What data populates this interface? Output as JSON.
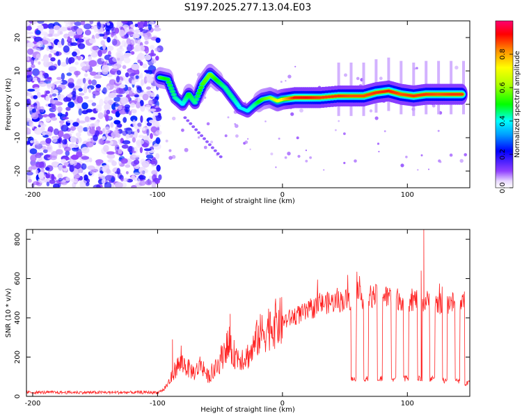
{
  "chart_data": [
    {
      "type": "heatmap",
      "title": "S197.2025.277.13.04.E03",
      "xlabel": "Height of straight line (km)",
      "ylabel": "Frequency (Hz)",
      "xlim": [
        -205,
        150
      ],
      "ylim": [
        -25,
        25
      ],
      "xticks": [
        -200,
        -100,
        0,
        100
      ],
      "yticks": [
        20,
        10,
        0,
        -10,
        -20
      ],
      "colorbar": {
        "label": "Normalized spectral amplitude",
        "range": [
          0,
          1
        ],
        "ticks": [
          "0.0",
          "0.2",
          "0.4",
          "0.6",
          "0.8"
        ],
        "tick_values": [
          0.0,
          0.2,
          0.4,
          0.6,
          0.8
        ]
      },
      "ridge": {
        "x": [
          -98,
          -92,
          -86,
          -80,
          -75,
          -70,
          -64,
          -58,
          -52,
          -46,
          -40,
          -34,
          -28,
          -22,
          -16,
          -10,
          -4,
          0,
          10,
          20,
          30,
          45,
          55,
          65,
          75,
          85,
          95,
          105,
          115,
          125,
          135,
          145
        ],
        "freq": [
          8,
          7.5,
          2,
          0,
          3,
          0.5,
          6,
          9,
          7,
          5,
          2,
          -1,
          -2,
          0,
          1.5,
          2,
          1,
          1.5,
          2,
          2,
          2,
          2.5,
          2.5,
          2.5,
          3.5,
          4,
          3,
          2.5,
          3,
          3,
          3,
          3
        ],
        "amplitude": [
          0.55,
          0.5,
          0.45,
          0.4,
          0.5,
          0.45,
          0.55,
          0.6,
          0.5,
          0.45,
          0.45,
          0.4,
          0.4,
          0.45,
          0.55,
          0.6,
          0.7,
          0.75,
          0.92,
          0.93,
          0.9,
          0.9,
          0.88,
          0.88,
          0.9,
          0.92,
          0.88,
          0.9,
          0.9,
          0.88,
          0.9,
          0.9
        ]
      }
    },
    {
      "type": "line",
      "xlabel": "Height of straight line (km)",
      "ylabel": "SNR (10 * v/v)",
      "xlim": [
        -205,
        150
      ],
      "ylim": [
        0,
        850
      ],
      "xticks": [
        -200,
        -100,
        0,
        100
      ],
      "yticks": [
        0,
        200,
        400,
        600,
        800
      ],
      "series": [
        {
          "name": "SNR",
          "color": "#ff2020",
          "x": [
            -205,
            -100,
            -95,
            -90,
            -85,
            -80,
            -75,
            -70,
            -65,
            -60,
            -55,
            -50,
            -45,
            -40,
            -35,
            -30,
            -25,
            -20,
            -10,
            0,
            10,
            20,
            30,
            40,
            50,
            60,
            70,
            80,
            90,
            100,
            110,
            120,
            130,
            140,
            150
          ],
          "y": [
            20,
            20,
            35,
            80,
            150,
            170,
            140,
            120,
            170,
            100,
            120,
            180,
            260,
            220,
            200,
            200,
            220,
            300,
            360,
            380,
            410,
            430,
            470,
            480,
            490,
            500,
            510,
            510,
            500,
            490,
            490,
            480,
            470,
            480,
            480
          ],
          "spikes": [
            {
              "x": -88,
              "y": 290
            },
            {
              "x": -42,
              "y": 420
            },
            {
              "x": 113,
              "y": 850
            },
            {
              "x": 111,
              "y": 640
            }
          ],
          "dips": [
            {
              "x_start": 55,
              "x_end": 59,
              "y": 90
            },
            {
              "x_start": 65,
              "x_end": 69,
              "y": 90
            },
            {
              "x_start": 76,
              "x_end": 80,
              "y": 90
            },
            {
              "x_start": 87,
              "x_end": 91,
              "y": 90
            },
            {
              "x_start": 97,
              "x_end": 101,
              "y": 90
            },
            {
              "x_start": 108,
              "x_end": 112,
              "y": 90
            },
            {
              "x_start": 118,
              "x_end": 122,
              "y": 90
            },
            {
              "x_start": 128,
              "x_end": 132,
              "y": 80
            },
            {
              "x_start": 138,
              "x_end": 142,
              "y": 80
            },
            {
              "x_start": 146,
              "x_end": 150,
              "y": 70
            }
          ]
        }
      ]
    }
  ]
}
